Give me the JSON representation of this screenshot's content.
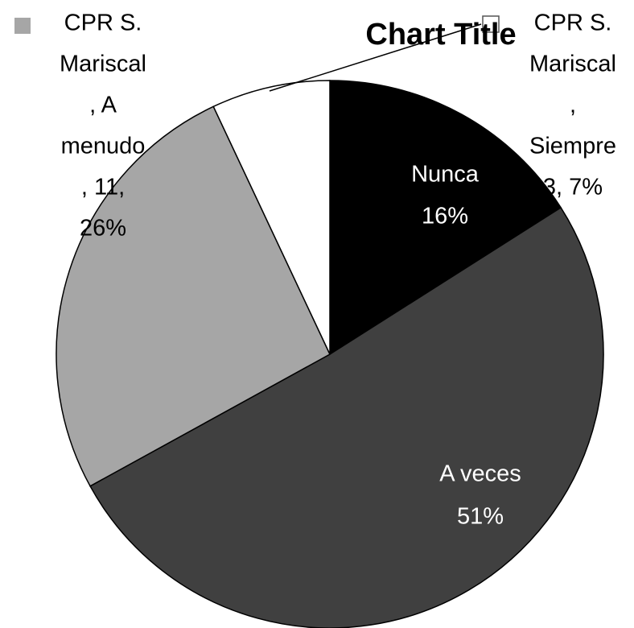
{
  "chart_data": {
    "type": "pie",
    "title": "Chart Title",
    "values": [
      16,
      51,
      26,
      7
    ],
    "colors": [
      "#000000",
      "#404040",
      "#a6a6a6",
      "#ffffff"
    ],
    "labels": [
      [
        "Nunca",
        "16%"
      ],
      [
        "A veces",
        "51%"
      ],
      [
        "CPR S.",
        "Mariscal",
        ", A",
        "menudo",
        ", 11,",
        "26%"
      ],
      [
        "CPR S.",
        "Mariscal",
        ",",
        "Siempre",
        "3, 7%"
      ]
    ]
  }
}
